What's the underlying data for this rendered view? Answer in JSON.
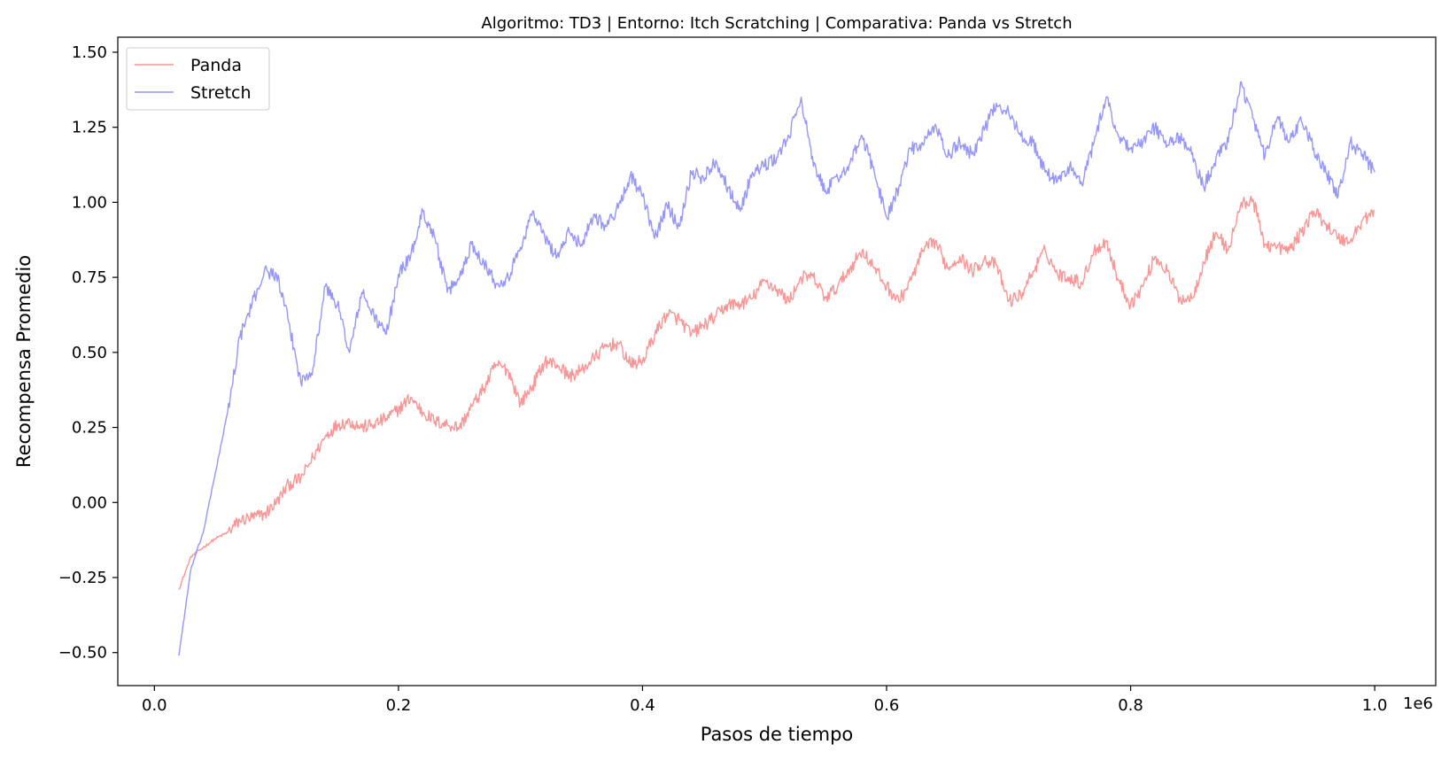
{
  "chart_data": {
    "type": "line",
    "title": "Algoritmo: TD3 | Entorno: Itch Scratching | Comparativa: Panda vs Stretch",
    "xlabel": "Pasos de tiempo",
    "ylabel": "Recompensa Promedio",
    "x_offset_label": "1e6",
    "xlim": [
      -0.03,
      1.05
    ],
    "ylim": [
      -0.61,
      1.55
    ],
    "xticks": [
      0.0,
      0.2,
      0.4,
      0.6,
      0.8,
      1.0
    ],
    "xtick_labels": [
      "0.0",
      "0.2",
      "0.4",
      "0.6",
      "0.8",
      "1.0"
    ],
    "yticks": [
      -0.5,
      -0.25,
      0.0,
      0.25,
      0.5,
      0.75,
      1.0,
      1.25,
      1.5
    ],
    "ytick_labels": [
      "−0.50",
      "−0.25",
      "0.00",
      "0.25",
      "0.50",
      "0.75",
      "1.00",
      "1.25",
      "1.50"
    ],
    "grid": false,
    "legend_position": "top-left",
    "series": [
      {
        "name": "Panda",
        "color": "#f89696",
        "x": [
          0.02,
          0.03,
          0.04,
          0.05,
          0.06,
          0.07,
          0.08,
          0.09,
          0.1,
          0.11,
          0.12,
          0.13,
          0.14,
          0.15,
          0.16,
          0.17,
          0.18,
          0.19,
          0.2,
          0.21,
          0.22,
          0.23,
          0.24,
          0.25,
          0.26,
          0.27,
          0.28,
          0.29,
          0.3,
          0.31,
          0.32,
          0.33,
          0.34,
          0.35,
          0.36,
          0.37,
          0.38,
          0.39,
          0.4,
          0.41,
          0.42,
          0.43,
          0.44,
          0.45,
          0.46,
          0.47,
          0.48,
          0.49,
          0.5,
          0.51,
          0.52,
          0.53,
          0.54,
          0.55,
          0.56,
          0.57,
          0.58,
          0.59,
          0.6,
          0.61,
          0.62,
          0.63,
          0.64,
          0.65,
          0.66,
          0.67,
          0.68,
          0.69,
          0.7,
          0.71,
          0.72,
          0.73,
          0.74,
          0.75,
          0.76,
          0.77,
          0.78,
          0.79,
          0.8,
          0.81,
          0.82,
          0.83,
          0.84,
          0.85,
          0.86,
          0.87,
          0.88,
          0.89,
          0.9,
          0.91,
          0.92,
          0.93,
          0.94,
          0.95,
          0.96,
          0.97,
          0.98,
          0.99,
          1.0
        ],
        "y": [
          -0.29,
          -0.18,
          -0.15,
          -0.12,
          -0.1,
          -0.06,
          -0.05,
          -0.04,
          0.0,
          0.06,
          0.08,
          0.15,
          0.22,
          0.26,
          0.27,
          0.25,
          0.26,
          0.28,
          0.31,
          0.35,
          0.3,
          0.27,
          0.26,
          0.25,
          0.32,
          0.38,
          0.46,
          0.44,
          0.33,
          0.39,
          0.47,
          0.46,
          0.42,
          0.44,
          0.48,
          0.52,
          0.53,
          0.46,
          0.47,
          0.56,
          0.63,
          0.61,
          0.56,
          0.59,
          0.62,
          0.66,
          0.66,
          0.68,
          0.74,
          0.71,
          0.67,
          0.75,
          0.75,
          0.68,
          0.72,
          0.78,
          0.84,
          0.78,
          0.72,
          0.67,
          0.74,
          0.84,
          0.87,
          0.78,
          0.82,
          0.77,
          0.81,
          0.79,
          0.67,
          0.69,
          0.77,
          0.84,
          0.76,
          0.75,
          0.73,
          0.84,
          0.87,
          0.74,
          0.66,
          0.72,
          0.82,
          0.77,
          0.68,
          0.68,
          0.8,
          0.9,
          0.84,
          0.99,
          1.01,
          0.86,
          0.85,
          0.84,
          0.9,
          0.97,
          0.93,
          0.88,
          0.87,
          0.94,
          0.97
        ]
      },
      {
        "name": "Stretch",
        "color": "#9696f8",
        "x": [
          0.02,
          0.03,
          0.04,
          0.05,
          0.06,
          0.07,
          0.08,
          0.09,
          0.1,
          0.11,
          0.12,
          0.13,
          0.14,
          0.15,
          0.16,
          0.17,
          0.18,
          0.19,
          0.2,
          0.21,
          0.22,
          0.23,
          0.24,
          0.25,
          0.26,
          0.27,
          0.28,
          0.29,
          0.3,
          0.31,
          0.32,
          0.33,
          0.34,
          0.35,
          0.36,
          0.37,
          0.38,
          0.39,
          0.4,
          0.41,
          0.42,
          0.43,
          0.44,
          0.45,
          0.46,
          0.47,
          0.48,
          0.49,
          0.5,
          0.51,
          0.52,
          0.53,
          0.54,
          0.55,
          0.56,
          0.57,
          0.58,
          0.59,
          0.6,
          0.61,
          0.62,
          0.63,
          0.64,
          0.65,
          0.66,
          0.67,
          0.68,
          0.69,
          0.7,
          0.71,
          0.72,
          0.73,
          0.74,
          0.75,
          0.76,
          0.77,
          0.78,
          0.79,
          0.8,
          0.81,
          0.82,
          0.83,
          0.84,
          0.85,
          0.86,
          0.87,
          0.88,
          0.89,
          0.9,
          0.91,
          0.92,
          0.93,
          0.94,
          0.95,
          0.96,
          0.97,
          0.98,
          0.99,
          1.0
        ],
        "y": [
          -0.51,
          -0.22,
          -0.1,
          0.1,
          0.3,
          0.55,
          0.66,
          0.77,
          0.76,
          0.6,
          0.4,
          0.45,
          0.72,
          0.66,
          0.5,
          0.7,
          0.62,
          0.56,
          0.76,
          0.82,
          0.97,
          0.88,
          0.7,
          0.75,
          0.86,
          0.8,
          0.73,
          0.75,
          0.85,
          0.97,
          0.88,
          0.82,
          0.9,
          0.86,
          0.96,
          0.92,
          0.98,
          1.09,
          1.02,
          0.88,
          0.99,
          0.92,
          1.1,
          1.08,
          1.14,
          1.05,
          0.97,
          1.1,
          1.12,
          1.15,
          1.22,
          1.35,
          1.12,
          1.04,
          1.08,
          1.13,
          1.22,
          1.1,
          0.95,
          1.05,
          1.18,
          1.19,
          1.26,
          1.15,
          1.2,
          1.16,
          1.24,
          1.33,
          1.3,
          1.22,
          1.2,
          1.1,
          1.07,
          1.12,
          1.06,
          1.2,
          1.35,
          1.22,
          1.18,
          1.2,
          1.25,
          1.19,
          1.22,
          1.16,
          1.05,
          1.15,
          1.2,
          1.4,
          1.28,
          1.15,
          1.28,
          1.2,
          1.27,
          1.18,
          1.1,
          1.02,
          1.2,
          1.16,
          1.1
        ]
      }
    ]
  }
}
